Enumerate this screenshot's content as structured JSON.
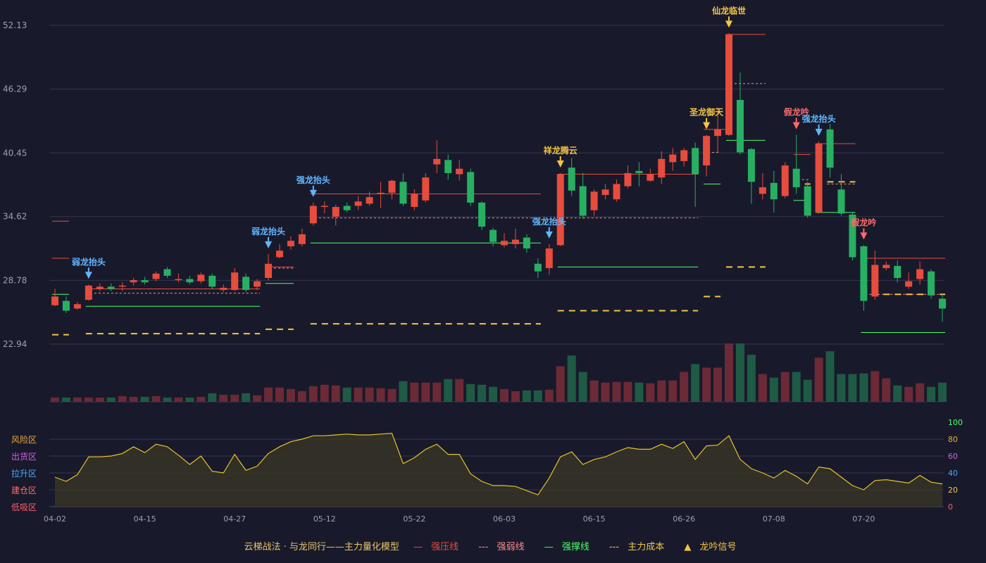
{
  "legend": {
    "model_title": "云梯战法 · 与龙同行——主力量化模型",
    "strong_pressure": "强压线",
    "strong_weak": "强弱线",
    "strong_support": "强撑线",
    "main_cost": "主力成本",
    "dragon_signal": "龙吟信号"
  },
  "colors": {
    "background": "#181a2b",
    "up": "#e74c3c",
    "down": "#27b062",
    "pressure": "#e74c3c",
    "weak": "#ff8a8a",
    "support": "#4dff6a",
    "cost": "#f5c542",
    "osc_line": "#e6c22b"
  },
  "chart_data": {
    "type": "candlestick",
    "price_axis": {
      "ticks": [
        52.13,
        46.29,
        40.45,
        34.62,
        28.78,
        22.94
      ],
      "ylim": [
        22.94,
        52.13
      ]
    },
    "x_ticks": [
      {
        "i": 0,
        "label": "04-02"
      },
      {
        "i": 8,
        "label": "04-15"
      },
      {
        "i": 16,
        "label": "04-27"
      },
      {
        "i": 24,
        "label": "05-12"
      },
      {
        "i": 32,
        "label": "05-22"
      },
      {
        "i": 40,
        "label": "06-03"
      },
      {
        "i": 48,
        "label": "06-15"
      },
      {
        "i": 56,
        "label": "06-26"
      },
      {
        "i": 64,
        "label": "07-08"
      },
      {
        "i": 72,
        "label": "07-20"
      }
    ],
    "candles": [
      [
        26.5,
        27.3,
        26.4,
        28.0
      ],
      [
        26.9,
        26.0,
        25.8,
        27.3
      ],
      [
        26.2,
        26.6,
        26.1,
        26.8
      ],
      [
        27.0,
        28.3,
        26.9,
        28.4
      ],
      [
        28.0,
        28.2,
        27.8,
        28.5
      ],
      [
        28.2,
        28.0,
        27.8,
        28.5
      ],
      [
        28.2,
        28.3,
        27.8,
        28.6
      ],
      [
        28.6,
        28.8,
        28.3,
        29.0
      ],
      [
        28.8,
        28.6,
        28.4,
        29.1
      ],
      [
        28.9,
        29.4,
        28.7,
        29.6
      ],
      [
        29.8,
        29.2,
        29.0,
        30.0
      ],
      [
        28.8,
        28.9,
        28.6,
        29.4
      ],
      [
        28.9,
        28.6,
        28.4,
        29.2
      ],
      [
        28.7,
        29.3,
        28.5,
        29.5
      ],
      [
        29.2,
        28.2,
        28.0,
        29.4
      ],
      [
        27.9,
        28.1,
        27.7,
        28.4
      ],
      [
        27.9,
        29.5,
        27.8,
        29.9
      ],
      [
        29.1,
        27.9,
        27.7,
        29.4
      ],
      [
        28.2,
        28.7,
        27.9,
        28.9
      ],
      [
        29.0,
        30.3,
        28.8,
        31.2
      ],
      [
        30.9,
        31.5,
        30.8,
        32.1
      ],
      [
        31.9,
        32.4,
        31.6,
        32.8
      ],
      [
        32.1,
        33.0,
        31.9,
        33.5
      ],
      [
        34.0,
        35.6,
        33.8,
        35.9
      ],
      [
        35.5,
        35.6,
        34.9,
        36.0
      ],
      [
        34.6,
        35.5,
        33.8,
        35.7
      ],
      [
        35.6,
        35.2,
        35.0,
        35.9
      ],
      [
        35.6,
        36.0,
        35.2,
        36.5
      ],
      [
        35.8,
        36.4,
        35.6,
        36.9
      ],
      [
        36.7,
        36.8,
        35.4,
        37.8
      ],
      [
        36.8,
        37.9,
        36.2,
        38.0
      ],
      [
        37.8,
        35.8,
        35.6,
        38.6
      ],
      [
        35.5,
        36.7,
        35.2,
        37.1
      ],
      [
        36.1,
        38.2,
        35.9,
        38.6
      ],
      [
        39.4,
        39.9,
        38.6,
        41.6
      ],
      [
        39.8,
        38.6,
        38.0,
        40.3
      ],
      [
        38.5,
        39.0,
        37.9,
        39.8
      ],
      [
        38.7,
        35.9,
        35.6,
        39.0
      ],
      [
        35.9,
        33.7,
        33.4,
        36.0
      ],
      [
        33.4,
        32.3,
        31.9,
        33.6
      ],
      [
        32.0,
        32.4,
        31.8,
        33.1
      ],
      [
        32.1,
        32.5,
        31.7,
        33.5
      ],
      [
        32.7,
        31.7,
        31.3,
        33.0
      ],
      [
        30.3,
        29.6,
        29.0,
        30.8
      ],
      [
        29.9,
        31.7,
        29.3,
        32.1
      ],
      [
        32.0,
        38.5,
        31.9,
        38.6
      ],
      [
        39.1,
        37.0,
        36.5,
        40.0
      ],
      [
        37.4,
        34.7,
        34.4,
        38.6
      ],
      [
        35.2,
        36.9,
        34.7,
        37.1
      ],
      [
        36.6,
        37.1,
        36.2,
        37.6
      ],
      [
        36.2,
        37.6,
        36.0,
        38.0
      ],
      [
        37.4,
        38.6,
        37.2,
        39.3
      ],
      [
        38.8,
        38.6,
        37.4,
        39.6
      ],
      [
        37.9,
        38.5,
        37.8,
        39.0
      ],
      [
        38.2,
        39.9,
        37.6,
        40.6
      ],
      [
        39.6,
        40.3,
        38.8,
        40.9
      ],
      [
        39.7,
        40.7,
        39.2,
        40.9
      ],
      [
        40.9,
        38.5,
        35.5,
        41.4
      ],
      [
        39.3,
        42.0,
        38.3,
        42.1
      ],
      [
        42.0,
        42.6,
        40.5,
        44.6
      ],
      [
        42.1,
        51.3,
        42.0,
        51.4
      ],
      [
        45.3,
        40.5,
        40.3,
        47.8
      ],
      [
        40.8,
        37.8,
        35.8,
        40.9
      ],
      [
        36.7,
        37.3,
        36.2,
        38.6
      ],
      [
        37.7,
        36.2,
        35.0,
        38.8
      ],
      [
        36.5,
        39.3,
        36.3,
        39.6
      ],
      [
        39.0,
        37.3,
        36.7,
        42.1
      ],
      [
        37.4,
        34.7,
        34.5,
        37.8
      ],
      [
        35.0,
        41.3,
        34.9,
        41.5
      ],
      [
        42.6,
        39.1,
        38.2,
        43.1
      ],
      [
        37.1,
        34.9,
        34.7,
        38.5
      ],
      [
        34.8,
        30.9,
        30.6,
        35.0
      ],
      [
        31.9,
        26.9,
        26.0,
        32.0
      ],
      [
        27.3,
        30.2,
        27.0,
        31.5
      ],
      [
        29.9,
        30.2,
        29.7,
        30.5
      ],
      [
        30.1,
        29.0,
        28.6,
        30.6
      ],
      [
        28.2,
        28.7,
        28.0,
        29.5
      ],
      [
        28.9,
        29.8,
        28.4,
        30.5
      ],
      [
        29.6,
        27.4,
        27.1,
        29.8
      ],
      [
        27.1,
        26.2,
        25.0,
        27.5
      ]
    ],
    "lines": {
      "pressure": [
        [
          0,
          1,
          34.2
        ],
        [
          0,
          1,
          30.8
        ],
        [
          3,
          18,
          28.0
        ],
        [
          19,
          21,
          30.0
        ],
        [
          23,
          43,
          36.7
        ],
        [
          45,
          57,
          38.5
        ],
        [
          58,
          60,
          42.6
        ],
        [
          60,
          63,
          51.3
        ],
        [
          66,
          67,
          40.3
        ],
        [
          68,
          71,
          41.3
        ],
        [
          72,
          79,
          30.8
        ]
      ],
      "weak": [
        [
          3,
          18,
          27.6
        ],
        [
          19,
          21,
          29.9
        ],
        [
          23,
          43,
          34.5
        ],
        [
          45,
          57,
          34.5
        ],
        [
          58,
          59,
          40.5
        ],
        [
          60,
          63,
          46.8
        ],
        [
          66,
          67,
          38.0
        ],
        [
          69,
          71,
          37.6
        ],
        [
          72,
          79,
          27.5
        ]
      ],
      "support": [
        [
          0,
          1,
          27.5
        ],
        [
          3,
          18,
          26.4
        ],
        [
          19,
          21,
          28.5
        ],
        [
          23,
          43,
          32.2
        ],
        [
          45,
          57,
          30.0
        ],
        [
          58,
          59,
          37.6
        ],
        [
          60,
          63,
          41.6
        ],
        [
          66,
          67,
          36.1
        ],
        [
          68,
          71,
          35.0
        ],
        [
          72,
          79,
          24.0
        ]
      ],
      "cost": [
        [
          0,
          1,
          23.8
        ],
        [
          3,
          18,
          23.9
        ],
        [
          19,
          21,
          24.3
        ],
        [
          23,
          43,
          24.8
        ],
        [
          45,
          57,
          26.0
        ],
        [
          58,
          59,
          27.3
        ],
        [
          60,
          63,
          30.0
        ],
        [
          66,
          67,
          37.6
        ],
        [
          69,
          71,
          37.8
        ],
        [
          72,
          79,
          27.5
        ]
      ]
    },
    "signals": [
      {
        "i": 3,
        "label": "弱龙抬头",
        "kind": "blue"
      },
      {
        "i": 19,
        "label": "弱龙抬头",
        "kind": "blue"
      },
      {
        "i": 23,
        "label": "强龙抬头",
        "kind": "blue"
      },
      {
        "i": 44,
        "label": "强龙抬头",
        "kind": "blue"
      },
      {
        "i": 45,
        "label": "祥龙腾云",
        "kind": "gold"
      },
      {
        "i": 58,
        "label": "圣龙御天",
        "kind": "gold"
      },
      {
        "i": 60,
        "label": "仙龙临世",
        "kind": "gold"
      },
      {
        "i": 66,
        "label": "假龙吟",
        "kind": "red"
      },
      {
        "i": 68,
        "label": "强龙抬头",
        "kind": "blue"
      },
      {
        "i": 72,
        "label": "假龙吟",
        "kind": "red"
      }
    ],
    "volume": [
      6,
      6,
      6,
      6,
      6,
      6,
      8,
      7,
      7,
      8,
      6,
      6,
      6,
      7,
      12,
      10,
      10,
      12,
      9,
      20,
      20,
      18,
      15,
      22,
      24,
      23,
      20,
      20,
      20,
      19,
      18,
      29,
      27,
      27,
      27,
      32,
      32,
      25,
      24,
      21,
      18,
      15,
      16,
      16,
      17,
      50,
      65,
      42,
      30,
      27,
      28,
      28,
      27,
      26,
      30,
      30,
      42,
      53,
      48,
      48,
      82,
      82,
      66,
      39,
      34,
      42,
      42,
      31,
      62,
      71,
      39,
      39,
      40,
      43,
      33,
      23,
      21,
      26,
      21,
      27
    ],
    "osc": {
      "zones": [
        "风险区",
        "出货区",
        "拉升区",
        "建仓区",
        "低吸区"
      ],
      "right_ticks": [
        100,
        80,
        60,
        40,
        20,
        0
      ],
      "values": [
        35,
        30,
        38,
        59,
        59,
        60,
        63,
        71,
        64,
        74,
        71,
        61,
        50,
        60,
        42,
        40,
        62,
        43,
        48,
        63,
        71,
        77,
        80,
        84,
        84,
        85,
        86,
        85,
        85,
        86,
        87,
        51,
        58,
        68,
        74,
        62,
        62,
        39,
        30,
        25,
        25,
        24,
        19,
        14,
        34,
        59,
        65,
        50,
        56,
        59,
        65,
        70,
        68,
        68,
        74,
        69,
        77,
        56,
        72,
        73,
        84,
        56,
        45,
        40,
        34,
        43,
        36,
        27,
        47,
        45,
        35,
        25,
        20,
        31,
        32,
        30,
        28,
        37,
        29,
        27
      ]
    }
  }
}
